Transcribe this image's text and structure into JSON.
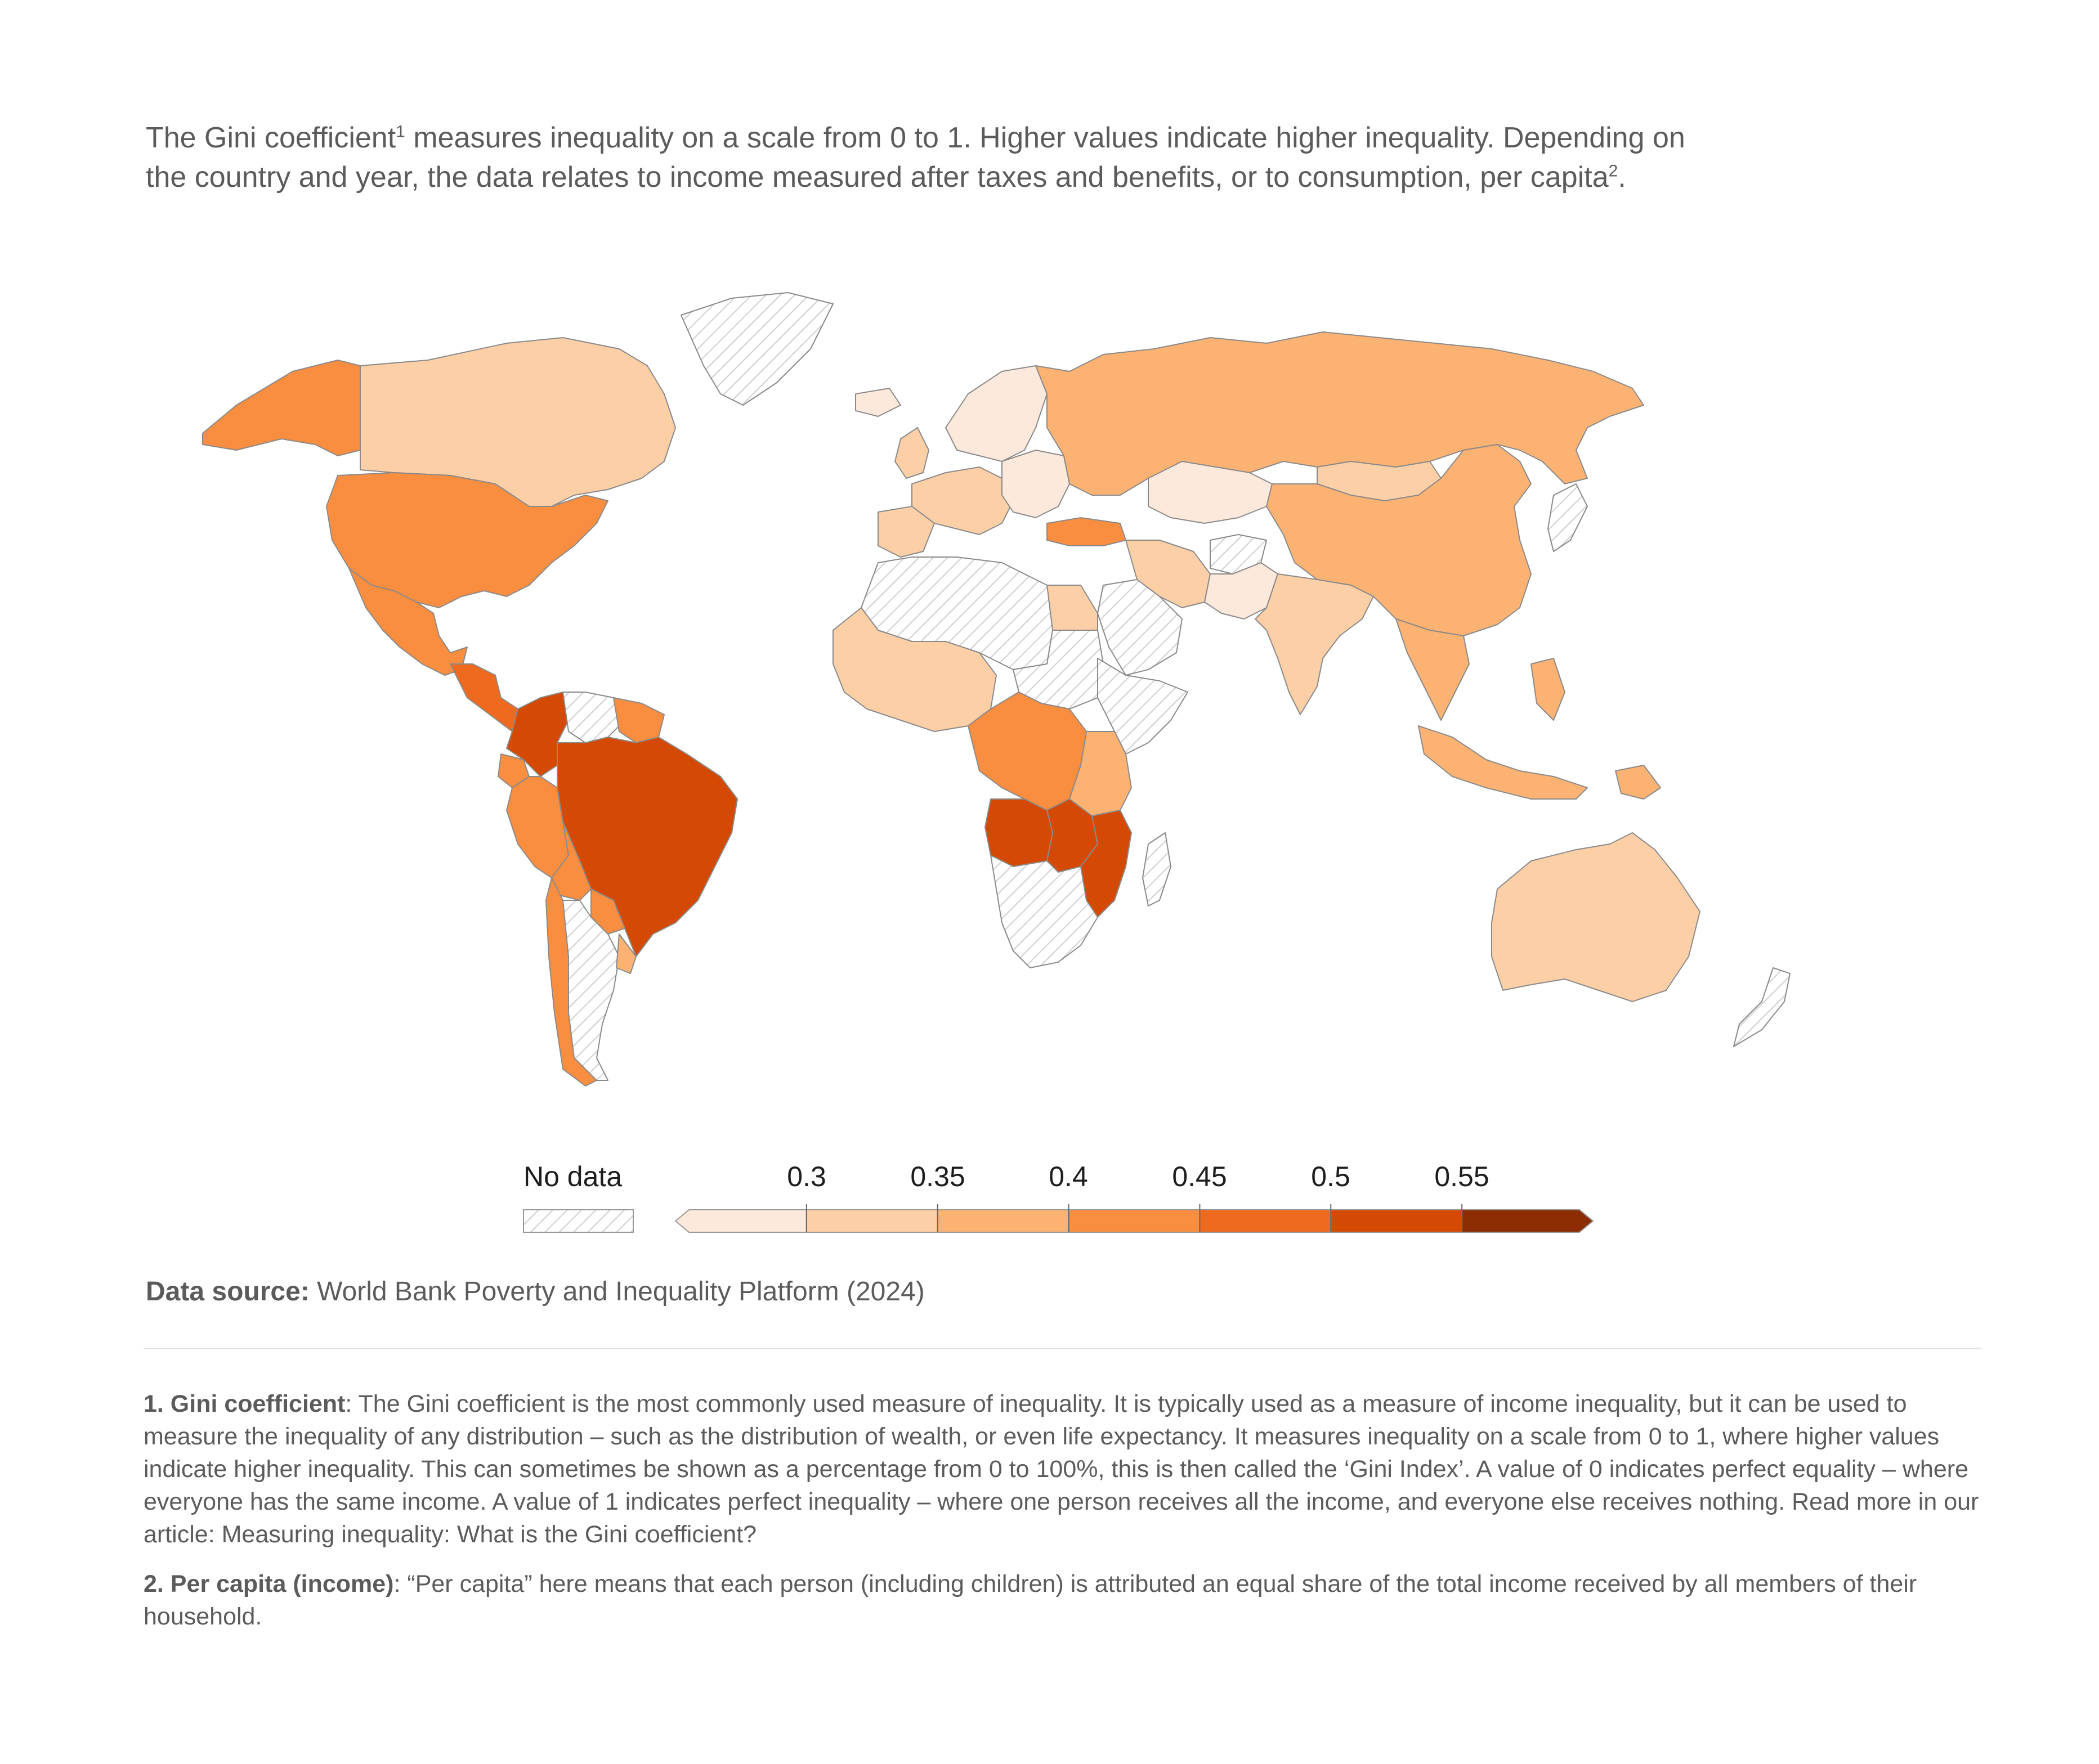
{
  "subtitle": {
    "part1": "The Gini coefficient",
    "sup1": "1",
    "part2": " measures inequality on a scale from 0 to 1. Higher values indicate higher inequality. Depending on the country and year, the data relates to income measured after taxes and benefits, or to consumption, per capita",
    "sup2": "2",
    "part3": "."
  },
  "legend": {
    "no_data_label": "No data",
    "ticks": [
      "0.3",
      "0.35",
      "0.4",
      "0.45",
      "0.5",
      "0.55"
    ],
    "bins": [
      "<0.3",
      "0.3-0.35",
      "0.35-0.4",
      "0.4-0.45",
      "0.45-0.5",
      "0.5-0.55",
      ">0.55"
    ],
    "colors": [
      "#fde9dc",
      "#fdcfa6",
      "#fcb273",
      "#f98d40",
      "#ee6a1f",
      "#d44a05",
      "#8c2d04"
    ],
    "no_data_color": "#e6e6e6"
  },
  "source": {
    "label": "Data source:",
    "text": " World Bank Poverty and Inequality Platform (2024)"
  },
  "notes": [
    {
      "title": "1. Gini coefficient",
      "text": ": The Gini coefficient is the most commonly used measure of inequality. It is typically used as a measure of income inequality, but it can be used to measure the inequality of any distribution – such as the distribution of wealth, or even life expectancy. It measures inequality on a scale from 0 to 1, where higher values indicate higher inequality. This can sometimes be shown as a percentage from 0 to 100%, this is then called the ‘Gini Index’. A value of 0 indicates perfect equality – where everyone has the same income. A value of 1 indicates perfect inequality – where one person receives all the income, and everyone else receives nothing. Read more in our article: Measuring inequality: What is the Gini coefficient?"
    },
    {
      "title": "2. Per capita (income)",
      "text": ": “Per capita” here means that each person (including children) is attributed an equal share of the total income received by all members of their household."
    }
  ],
  "regions": [
    {
      "name": "Alaska",
      "bin": 3
    },
    {
      "name": "Canada",
      "bin": 1
    },
    {
      "name": "Greenland",
      "bin": -1
    },
    {
      "name": "United States",
      "bin": 3
    },
    {
      "name": "Mexico",
      "bin": 3
    },
    {
      "name": "Central America",
      "bin": 4
    },
    {
      "name": "Colombia",
      "bin": 5
    },
    {
      "name": "Venezuela",
      "bin": -1
    },
    {
      "name": "Guianas",
      "bin": 3
    },
    {
      "name": "Ecuador",
      "bin": 3
    },
    {
      "name": "Peru",
      "bin": 3
    },
    {
      "name": "Brazil",
      "bin": 5
    },
    {
      "name": "Bolivia",
      "bin": 3
    },
    {
      "name": "Paraguay",
      "bin": 3
    },
    {
      "name": "Chile",
      "bin": 3
    },
    {
      "name": "Argentina",
      "bin": -1
    },
    {
      "name": "Uruguay",
      "bin": 2
    },
    {
      "name": "Iceland",
      "bin": 0
    },
    {
      "name": "Scandinavia",
      "bin": 0
    },
    {
      "name": "United Kingdom",
      "bin": 1
    },
    {
      "name": "Western Europe",
      "bin": 1
    },
    {
      "name": "Eastern Europe",
      "bin": 0
    },
    {
      "name": "Iberia",
      "bin": 1
    },
    {
      "name": "Turkey",
      "bin": 3
    },
    {
      "name": "Russia",
      "bin": 2
    },
    {
      "name": "Kazakhstan",
      "bin": 0
    },
    {
      "name": "Mongolia",
      "bin": 1
    },
    {
      "name": "China",
      "bin": 2
    },
    {
      "name": "Iran",
      "bin": 1
    },
    {
      "name": "Afghanistan",
      "bin": -1
    },
    {
      "name": "Pakistan",
      "bin": 0
    },
    {
      "name": "India",
      "bin": 1
    },
    {
      "name": "Saudi Arabia",
      "bin": -1
    },
    {
      "name": "Egypt",
      "bin": 1
    },
    {
      "name": "North Africa",
      "bin": -1
    },
    {
      "name": "West Africa",
      "bin": 1
    },
    {
      "name": "Sudan",
      "bin": -1
    },
    {
      "name": "Horn of Africa",
      "bin": -1
    },
    {
      "name": "Central Africa",
      "bin": 3
    },
    {
      "name": "East Africa",
      "bin": 2
    },
    {
      "name": "Angola",
      "bin": 5
    },
    {
      "name": "Zambia",
      "bin": 5
    },
    {
      "name": "Mozambique",
      "bin": 5
    },
    {
      "name": "Southern Africa",
      "bin": -1
    },
    {
      "name": "Madagascar",
      "bin": -1
    },
    {
      "name": "Southeast Asia",
      "bin": 2
    },
    {
      "name": "Japan",
      "bin": -1
    },
    {
      "name": "Indonesia",
      "bin": 2
    },
    {
      "name": "Philippines",
      "bin": 2
    },
    {
      "name": "Papua New Guinea",
      "bin": 2
    },
    {
      "name": "Australia",
      "bin": 1
    },
    {
      "name": "New Zealand",
      "bin": -1
    }
  ]
}
